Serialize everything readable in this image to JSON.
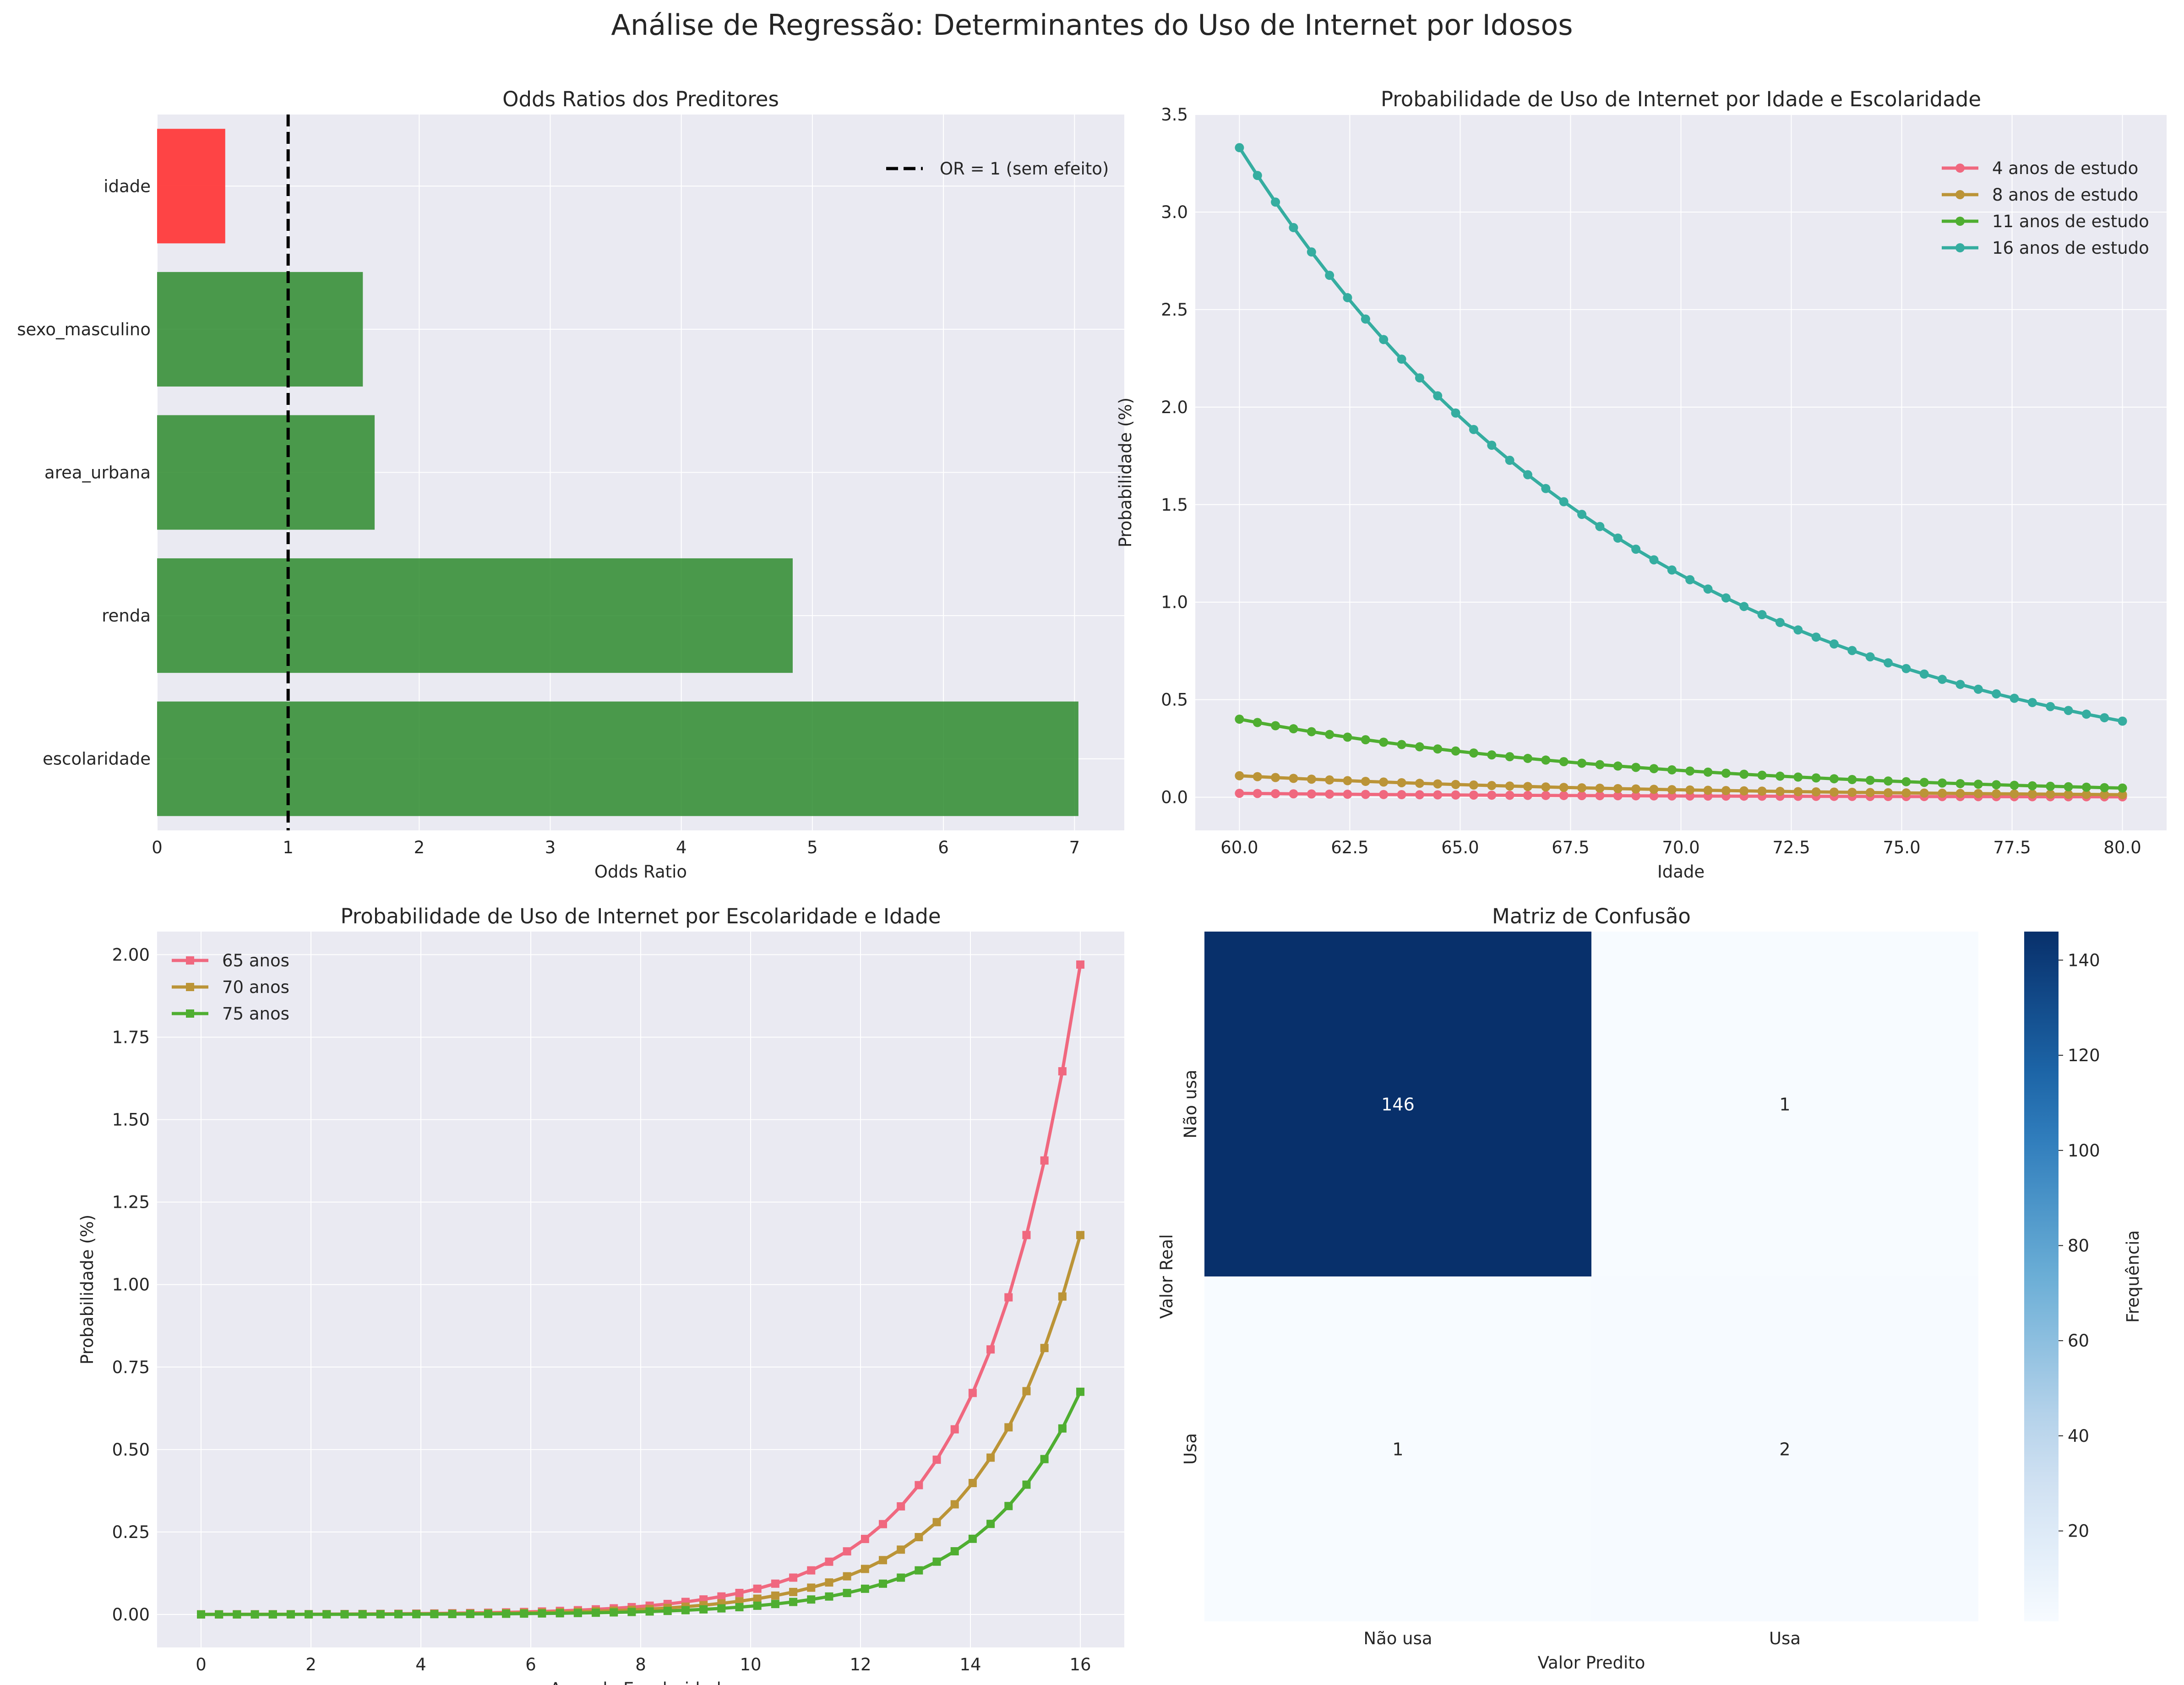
{
  "suptitle": "Análise de Regressão: Determinantes do Uso de Internet por Idosos",
  "colors": {
    "bg_panel": "#eaeaf2",
    "grid": "#ffffff",
    "positive": "#2e8b2e",
    "negative": "#ff3b3b",
    "line_4": "#f0687f",
    "line_8": "#bb9437",
    "line_11": "#4fae31",
    "line_16": "#35ada0"
  },
  "chart_data": [
    {
      "id": "odds",
      "type": "bar",
      "orientation": "horizontal",
      "title": "Odds Ratios dos Preditores",
      "xlabel": "Odds Ratio",
      "ylabel": "",
      "categories": [
        "idade",
        "sexo_masculino",
        "area_urbana",
        "renda",
        "escolaridade"
      ],
      "values": [
        0.52,
        1.57,
        1.66,
        4.85,
        7.03
      ],
      "xlim": [
        0,
        7.38
      ],
      "xticks": [
        0,
        1,
        2,
        3,
        4,
        5,
        6,
        7
      ],
      "reference_line": {
        "x": 1,
        "label": "OR = 1 (sem efeito)",
        "style": "dashed"
      },
      "legend": "top-right",
      "grid": true
    },
    {
      "id": "age",
      "type": "line",
      "title": "Probabilidade de Uso de Internet por Idade e Escolaridade",
      "xlabel": "Idade",
      "ylabel": "Probabilidade (%)",
      "x_start": 60,
      "x_end": 80,
      "n_points": 50,
      "xlim": [
        59,
        81
      ],
      "ylim": [
        -0.17,
        3.5
      ],
      "xticks": [
        60.0,
        62.5,
        65.0,
        67.5,
        70.0,
        72.5,
        75.0,
        77.5,
        80.0
      ],
      "xtick_labels": [
        "60.0",
        "62.5",
        "65.0",
        "67.5",
        "70.0",
        "72.5",
        "75.0",
        "77.5",
        "80.0"
      ],
      "yticks": [
        0.0,
        0.5,
        1.0,
        1.5,
        2.0,
        2.5,
        3.0,
        3.5
      ],
      "ytick_labels": [
        "0.0",
        "0.5",
        "1.0",
        "1.5",
        "2.0",
        "2.5",
        "3.0",
        "3.5"
      ],
      "marker": "circle",
      "legend": "top-right",
      "grid": true,
      "series": [
        {
          "name": "4 anos de estudo",
          "start": 0.02,
          "end": 0.002
        },
        {
          "name": "8 anos de estudo",
          "start": 0.11,
          "end": 0.013
        },
        {
          "name": "11 anos de estudo",
          "start": 0.4,
          "end": 0.047
        },
        {
          "name": "16 anos de estudo",
          "start": 3.33,
          "end": 0.39
        }
      ]
    },
    {
      "id": "edu",
      "type": "line",
      "title": "Probabilidade de Uso de Internet por Escolaridade e Idade",
      "xlabel": "Anos de Escolaridade",
      "ylabel": "Probabilidade (%)",
      "x_start": 0,
      "x_end": 16,
      "n_points": 50,
      "xlim": [
        -0.8,
        16.8
      ],
      "ylim": [
        -0.1,
        2.07
      ],
      "xticks": [
        0,
        2,
        4,
        6,
        8,
        10,
        12,
        14,
        16
      ],
      "xtick_labels": [
        "0",
        "2",
        "4",
        "6",
        "8",
        "10",
        "12",
        "14",
        "16"
      ],
      "yticks": [
        0.0,
        0.25,
        0.5,
        0.75,
        1.0,
        1.25,
        1.5,
        1.75,
        2.0
      ],
      "ytick_labels": [
        "0.00",
        "0.25",
        "0.50",
        "0.75",
        "1.00",
        "1.25",
        "1.50",
        "1.75",
        "2.00"
      ],
      "marker": "square",
      "legend": "top-left",
      "grid": true,
      "series": [
        {
          "name": "65 anos",
          "start": 0.0003,
          "end": 1.97
        },
        {
          "name": "70 anos",
          "start": 0.0002,
          "end": 1.15
        },
        {
          "name": "75 anos",
          "start": 0.0001,
          "end": 0.675
        }
      ]
    },
    {
      "id": "cm",
      "type": "heatmap",
      "title": "Matriz de Confusão",
      "xlabel": "Valor Predito",
      "ylabel": "Valor Real",
      "row_labels": [
        "Não usa",
        "Usa"
      ],
      "col_labels": [
        "Não usa",
        "Usa"
      ],
      "values": [
        [
          146,
          1
        ],
        [
          1,
          2
        ]
      ],
      "colorbar_label": "Frequência",
      "colorbar_ticks": [
        20,
        40,
        60,
        80,
        100,
        120,
        140
      ],
      "colorbar_tick_labels": [
        "20",
        "40",
        "60",
        "80",
        "100",
        "120",
        "140"
      ],
      "cmap": "Blues"
    }
  ]
}
